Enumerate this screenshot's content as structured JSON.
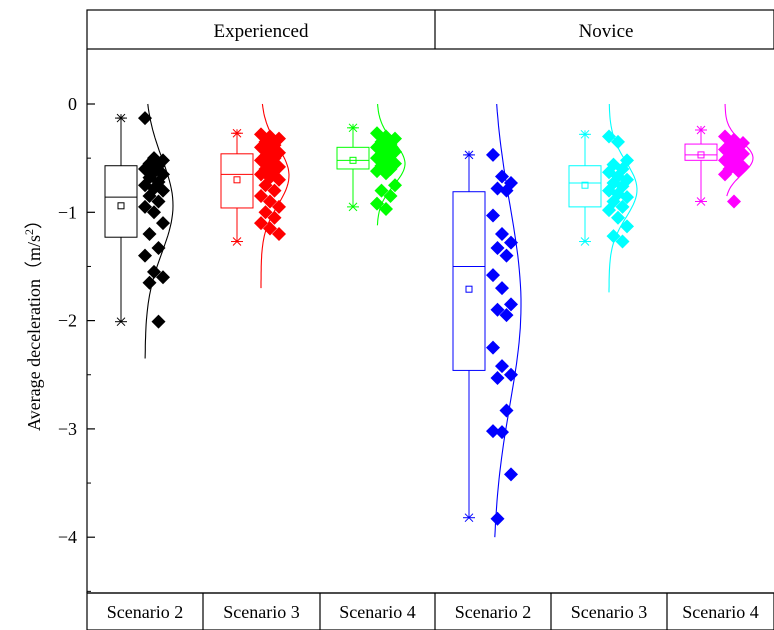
{
  "chart_data": {
    "type": "box",
    "ylabel_main": "Average deceleration（m/s",
    "ylabel_sup": "2",
    "ylabel_end": "）",
    "ylim": [
      -4.6,
      0.5
    ],
    "yticks": [
      0,
      -1,
      -2,
      -3,
      -4
    ],
    "ytick_labels": [
      "0",
      "−1",
      "−2",
      "−3",
      "−4"
    ],
    "groups": [
      {
        "label": "Experienced",
        "categories": [
          "Scenario 2",
          "Scenario 3",
          "Scenario 4"
        ]
      },
      {
        "label": "Novice",
        "categories": [
          "Scenario 2",
          "Scenario 3",
          "Scenario 4"
        ]
      }
    ],
    "series": [
      {
        "group": "Experienced",
        "category": "Scenario 2",
        "color": "#000000",
        "box": {
          "whisker_low": -2.01,
          "q1": -1.23,
          "median": -0.86,
          "q3": -0.57,
          "whisker_high": -0.13,
          "mean": -0.94,
          "min_marker": -2.01,
          "max_marker": -0.13
        },
        "points": [
          -0.13,
          -0.5,
          -0.52,
          -0.55,
          -0.57,
          -0.6,
          -0.63,
          -0.65,
          -0.68,
          -0.72,
          -0.75,
          -0.78,
          -0.8,
          -0.85,
          -0.9,
          -0.95,
          -1.0,
          -1.1,
          -1.2,
          -1.33,
          -1.4,
          -1.55,
          -1.6,
          -1.65,
          -2.01
        ],
        "density_range": [
          0.0,
          -2.35
        ]
      },
      {
        "group": "Experienced",
        "category": "Scenario 3",
        "color": "#ff0000",
        "box": {
          "whisker_low": -1.27,
          "q1": -0.96,
          "median": -0.65,
          "q3": -0.46,
          "whisker_high": -0.27,
          "mean": -0.7,
          "min_marker": -1.27,
          "max_marker": -0.27
        },
        "points": [
          -0.28,
          -0.3,
          -0.32,
          -0.35,
          -0.38,
          -0.4,
          -0.42,
          -0.45,
          -0.48,
          -0.5,
          -0.52,
          -0.55,
          -0.58,
          -0.6,
          -0.62,
          -0.65,
          -0.68,
          -0.7,
          -0.75,
          -0.8,
          -0.85,
          -0.9,
          -0.95,
          -1.0,
          -1.05,
          -1.1,
          -1.15,
          -1.2
        ],
        "density_range": [
          0.0,
          -1.7
        ]
      },
      {
        "group": "Experienced",
        "category": "Scenario 4",
        "color": "#00ff00",
        "box": {
          "whisker_low": -0.95,
          "q1": -0.6,
          "median": -0.52,
          "q3": -0.4,
          "whisker_high": -0.22,
          "mean": -0.52,
          "min_marker": -0.95,
          "max_marker": -0.22
        },
        "points": [
          -0.27,
          -0.3,
          -0.32,
          -0.35,
          -0.37,
          -0.4,
          -0.42,
          -0.44,
          -0.46,
          -0.48,
          -0.5,
          -0.52,
          -0.55,
          -0.57,
          -0.6,
          -0.62,
          -0.64,
          -0.75,
          -0.8,
          -0.85,
          -0.92,
          -0.97
        ],
        "density_range": [
          0.0,
          -1.12
        ]
      },
      {
        "group": "Novice",
        "category": "Scenario 2",
        "color": "#0000ff",
        "box": {
          "whisker_low": -3.82,
          "q1": -2.46,
          "median": -1.5,
          "q3": -0.81,
          "whisker_high": -0.47,
          "mean": -1.71,
          "min_marker": -3.82,
          "max_marker": -0.47
        },
        "points": [
          -0.47,
          -0.67,
          -0.73,
          -0.78,
          -0.8,
          -1.03,
          -1.2,
          -1.28,
          -1.33,
          -1.4,
          -1.58,
          -1.7,
          -1.85,
          -1.9,
          -1.95,
          -2.25,
          -2.42,
          -2.5,
          -2.53,
          -2.83,
          -3.02,
          -3.03,
          -3.42,
          -3.83
        ],
        "density_range": [
          0.0,
          -4.0
        ]
      },
      {
        "group": "Novice",
        "category": "Scenario 3",
        "color": "#00ffff",
        "box": {
          "whisker_low": -1.27,
          "q1": -0.95,
          "median": -0.73,
          "q3": -0.57,
          "whisker_high": -0.28,
          "mean": -0.75,
          "min_marker": -1.27,
          "max_marker": -0.28
        },
        "points": [
          -0.3,
          -0.35,
          -0.52,
          -0.56,
          -0.6,
          -0.63,
          -0.67,
          -0.7,
          -0.73,
          -0.76,
          -0.8,
          -0.83,
          -0.86,
          -0.9,
          -0.95,
          -0.98,
          -1.05,
          -1.13,
          -1.22,
          -1.27
        ],
        "density_range": [
          0.0,
          -1.74
        ]
      },
      {
        "group": "Novice",
        "category": "Scenario 4",
        "color": "#ff00ff",
        "box": {
          "whisker_low": -0.9,
          "q1": -0.52,
          "median": -0.47,
          "q3": -0.37,
          "whisker_high": -0.24,
          "mean": -0.47,
          "min_marker": -0.9,
          "max_marker": -0.24
        },
        "points": [
          -0.3,
          -0.33,
          -0.36,
          -0.38,
          -0.4,
          -0.42,
          -0.44,
          -0.46,
          -0.48,
          -0.5,
          -0.52,
          -0.55,
          -0.58,
          -0.6,
          -0.62,
          -0.65,
          -0.9
        ],
        "density_range": [
          0.0,
          -0.85
        ]
      }
    ]
  }
}
